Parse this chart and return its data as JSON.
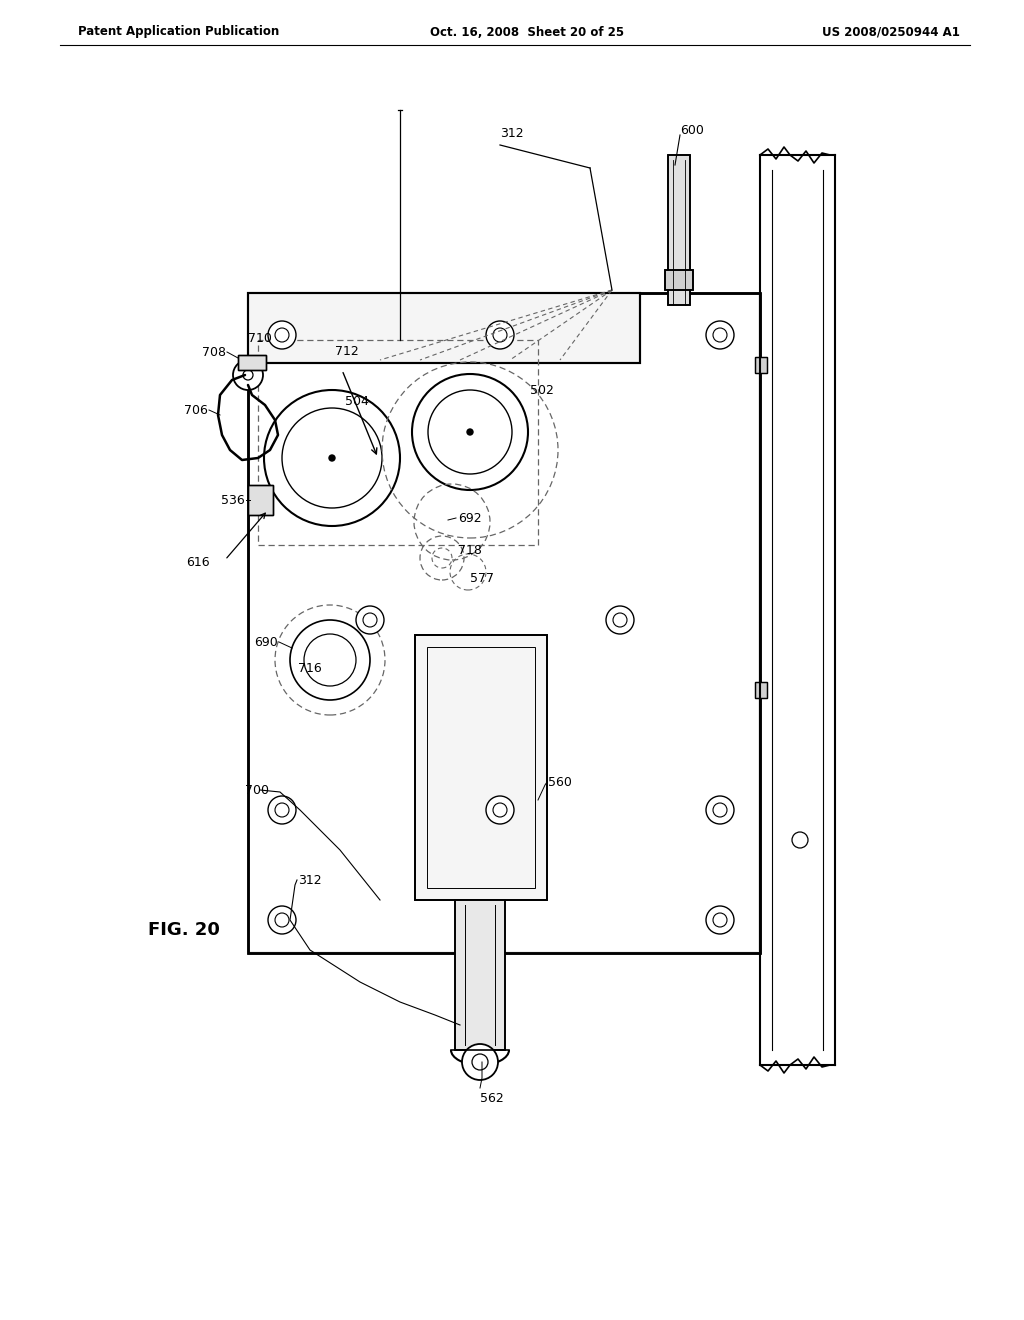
{
  "header_left": "Patent Application Publication",
  "header_mid": "Oct. 16, 2008  Sheet 20 of 25",
  "header_right": "US 2008/0250944 A1",
  "fig_label": "FIG. 20",
  "bg_color": "#ffffff",
  "line_color": "#000000",
  "dashed_color": "#666666",
  "labels": {
    "312_top": "312",
    "600": "600",
    "712": "712",
    "708": "708",
    "710": "710",
    "706": "706",
    "504": "504",
    "502": "502",
    "536": "536",
    "692": "692",
    "718": "718",
    "577": "577",
    "616": "616",
    "690": "690",
    "716": "716",
    "700": "700",
    "560": "560",
    "312_bot": "312",
    "562": "562"
  }
}
